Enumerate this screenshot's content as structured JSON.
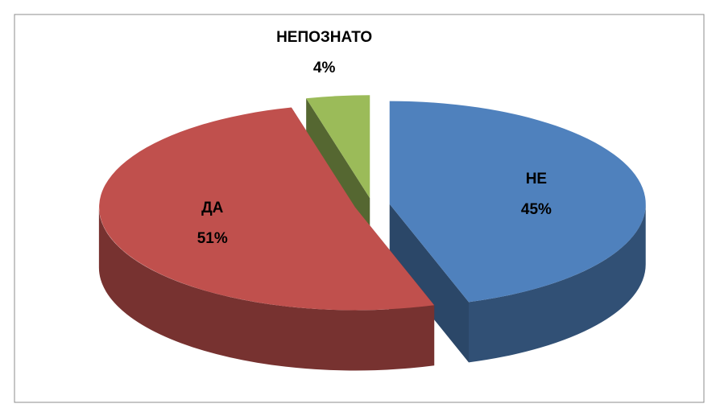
{
  "chart_data": {
    "type": "pie",
    "categories": [
      "НЕ",
      "ДА",
      "НЕПОЗНАТО"
    ],
    "values": [
      45,
      51,
      4
    ],
    "value_labels": [
      "45%",
      "51%",
      "4%"
    ],
    "colors": [
      "#4f81bd",
      "#c0504d",
      "#9bbb59"
    ]
  }
}
